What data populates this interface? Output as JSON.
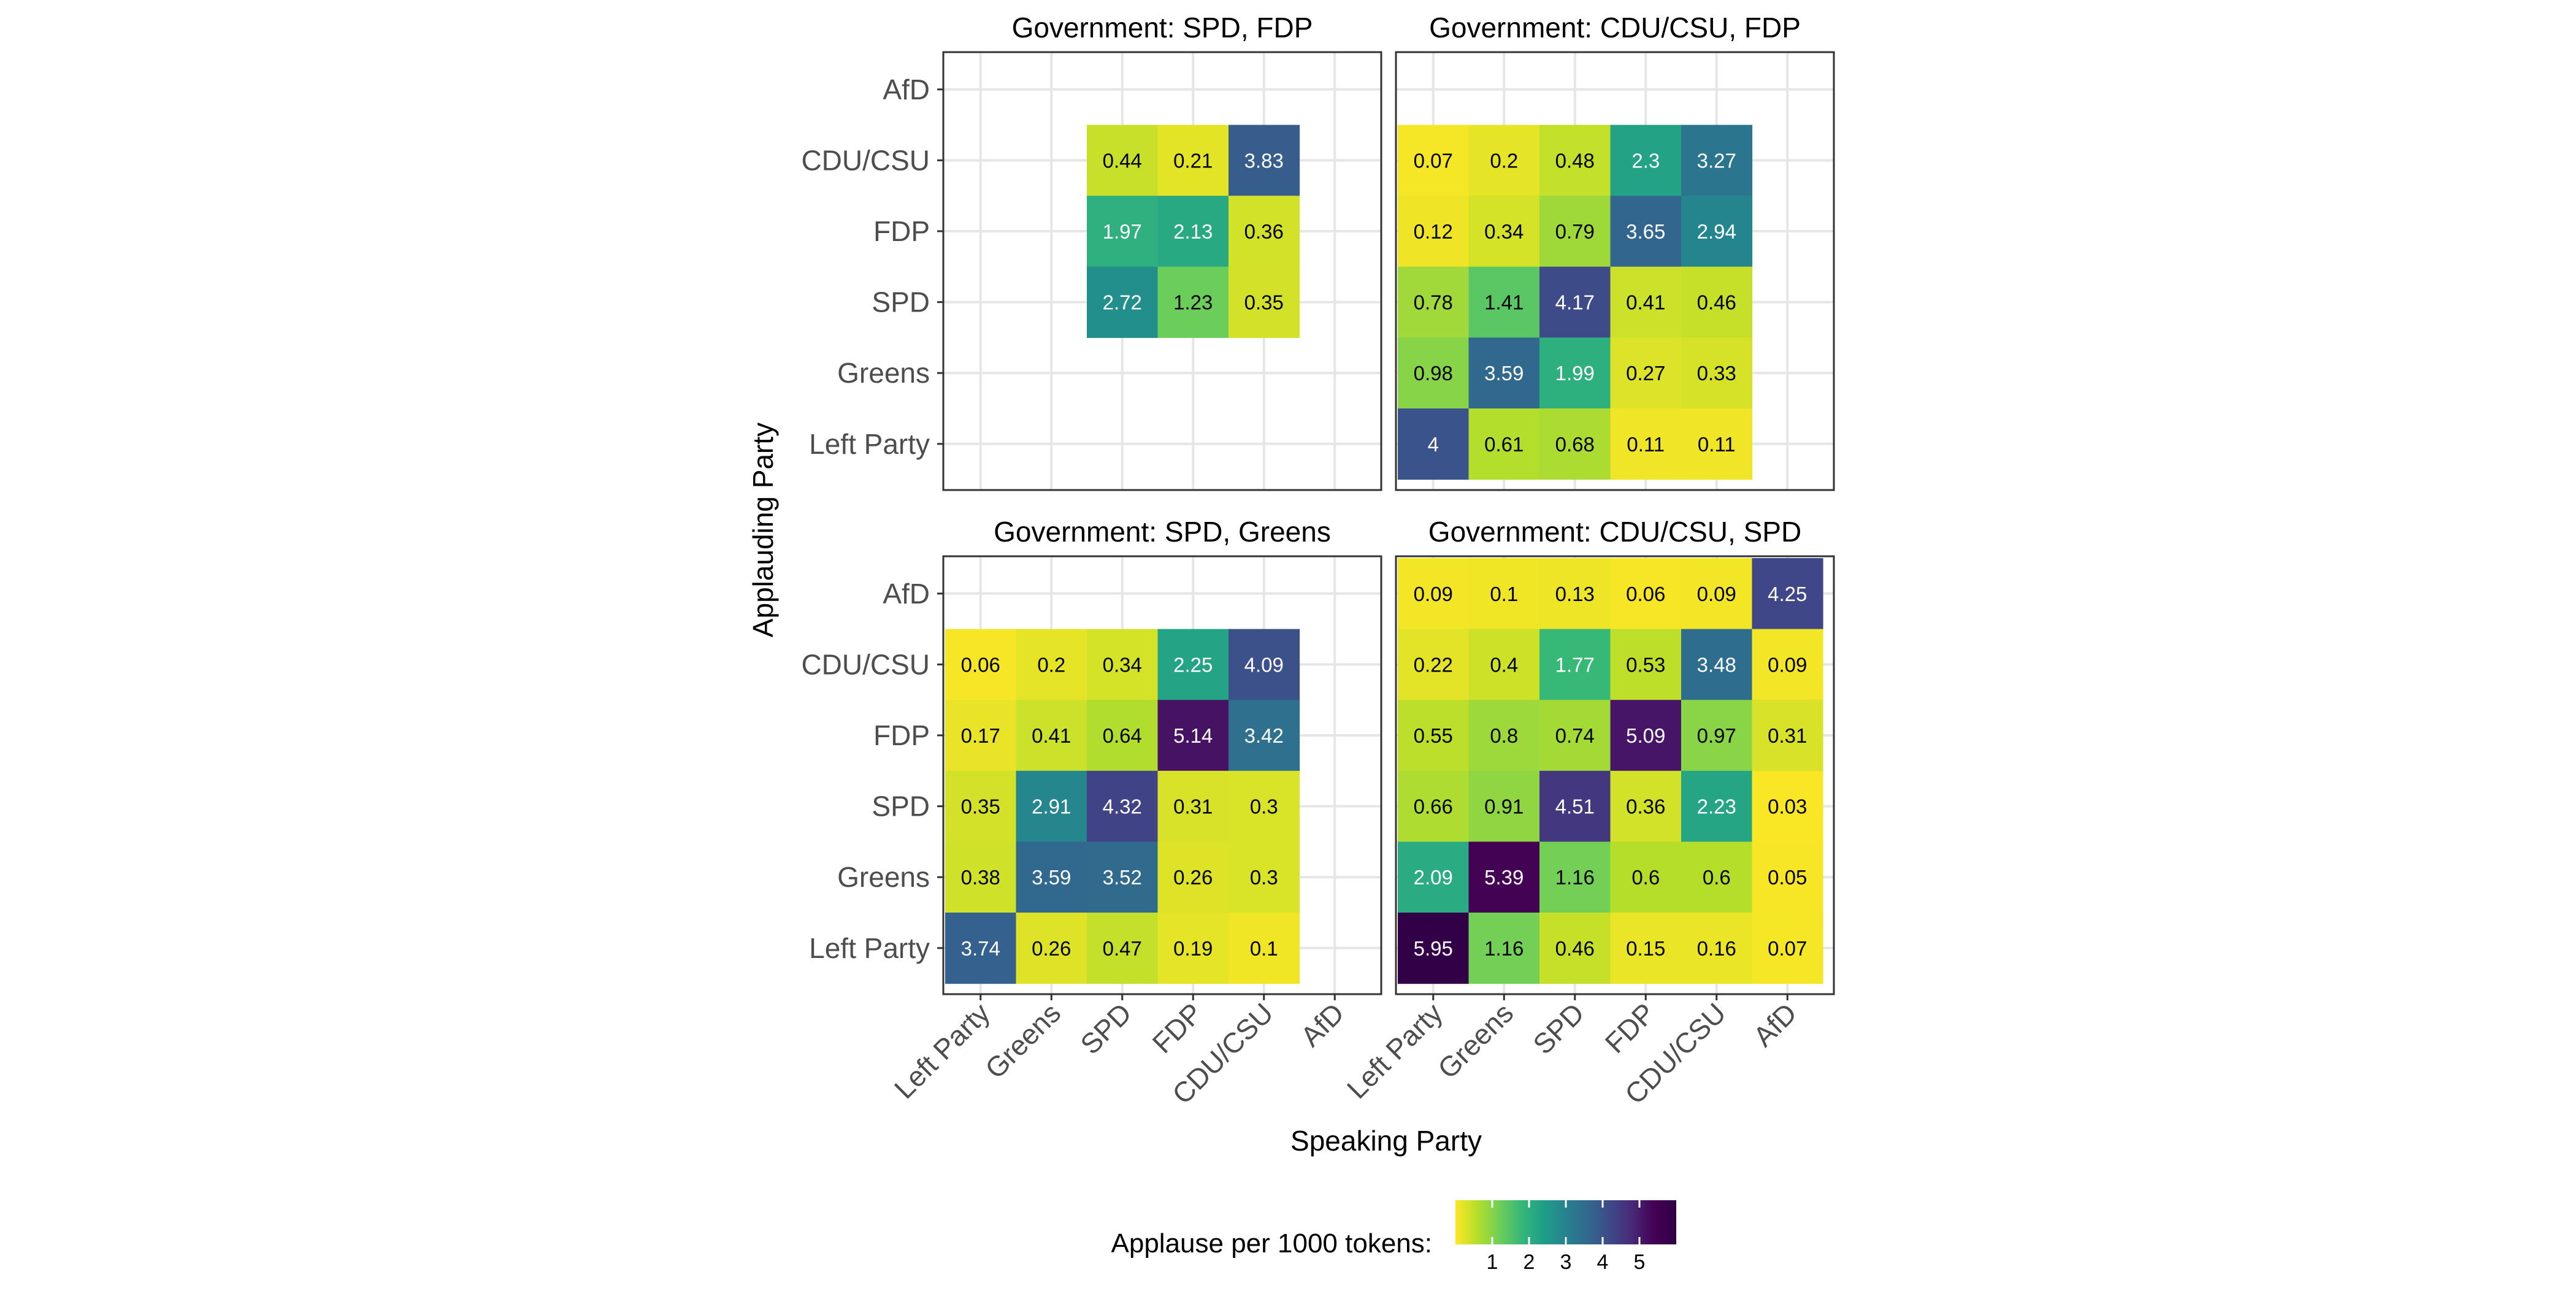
{
  "chart_data": {
    "type": "heatmap",
    "xlabel": "Speaking Party",
    "ylabel": "Applauding Party",
    "x_categories": [
      "Left Party",
      "Greens",
      "SPD",
      "FDP",
      "CDU/CSU",
      "AfD"
    ],
    "y_categories": [
      "AfD",
      "CDU/CSU",
      "FDP",
      "SPD",
      "Greens",
      "Left Party"
    ],
    "legend": {
      "title": "Applause per 1000 tokens:",
      "ticks": [
        1,
        2,
        3,
        4,
        5
      ],
      "range": [
        0,
        6
      ],
      "colormap": "viridis (reversed)",
      "position": "bottom"
    },
    "grid": true,
    "panels": [
      {
        "title": "Government: SPD, FDP",
        "cells": [
          {
            "y": "CDU/CSU",
            "x": "SPD",
            "value": 0.44
          },
          {
            "y": "CDU/CSU",
            "x": "FDP",
            "value": 0.21
          },
          {
            "y": "CDU/CSU",
            "x": "CDU/CSU",
            "value": 3.83
          },
          {
            "y": "FDP",
            "x": "SPD",
            "value": 1.97
          },
          {
            "y": "FDP",
            "x": "FDP",
            "value": 2.13
          },
          {
            "y": "FDP",
            "x": "CDU/CSU",
            "value": 0.36
          },
          {
            "y": "SPD",
            "x": "SPD",
            "value": 2.72
          },
          {
            "y": "SPD",
            "x": "FDP",
            "value": 1.23
          },
          {
            "y": "SPD",
            "x": "CDU/CSU",
            "value": 0.35
          }
        ]
      },
      {
        "title": "Government: CDU/CSU, FDP",
        "cells": [
          {
            "y": "CDU/CSU",
            "x": "Left Party",
            "value": 0.07
          },
          {
            "y": "CDU/CSU",
            "x": "Greens",
            "value": 0.2
          },
          {
            "y": "CDU/CSU",
            "x": "SPD",
            "value": 0.48
          },
          {
            "y": "CDU/CSU",
            "x": "FDP",
            "value": 2.3
          },
          {
            "y": "CDU/CSU",
            "x": "CDU/CSU",
            "value": 3.27
          },
          {
            "y": "FDP",
            "x": "Left Party",
            "value": 0.12
          },
          {
            "y": "FDP",
            "x": "Greens",
            "value": 0.34
          },
          {
            "y": "FDP",
            "x": "SPD",
            "value": 0.79
          },
          {
            "y": "FDP",
            "x": "FDP",
            "value": 3.65
          },
          {
            "y": "FDP",
            "x": "CDU/CSU",
            "value": 2.94
          },
          {
            "y": "SPD",
            "x": "Left Party",
            "value": 0.78
          },
          {
            "y": "SPD",
            "x": "Greens",
            "value": 1.41
          },
          {
            "y": "SPD",
            "x": "SPD",
            "value": 4.17
          },
          {
            "y": "SPD",
            "x": "FDP",
            "value": 0.41
          },
          {
            "y": "SPD",
            "x": "CDU/CSU",
            "value": 0.46
          },
          {
            "y": "Greens",
            "x": "Left Party",
            "value": 0.98
          },
          {
            "y": "Greens",
            "x": "Greens",
            "value": 3.59
          },
          {
            "y": "Greens",
            "x": "SPD",
            "value": 1.99
          },
          {
            "y": "Greens",
            "x": "FDP",
            "value": 0.27
          },
          {
            "y": "Greens",
            "x": "CDU/CSU",
            "value": 0.33
          },
          {
            "y": "Left Party",
            "x": "Left Party",
            "value": 4
          },
          {
            "y": "Left Party",
            "x": "Greens",
            "value": 0.61
          },
          {
            "y": "Left Party",
            "x": "SPD",
            "value": 0.68
          },
          {
            "y": "Left Party",
            "x": "FDP",
            "value": 0.11
          },
          {
            "y": "Left Party",
            "x": "CDU/CSU",
            "value": 0.11
          }
        ]
      },
      {
        "title": "Government: SPD, Greens",
        "cells": [
          {
            "y": "CDU/CSU",
            "x": "Left Party",
            "value": 0.06
          },
          {
            "y": "CDU/CSU",
            "x": "Greens",
            "value": 0.2
          },
          {
            "y": "CDU/CSU",
            "x": "SPD",
            "value": 0.34
          },
          {
            "y": "CDU/CSU",
            "x": "FDP",
            "value": 2.25
          },
          {
            "y": "CDU/CSU",
            "x": "CDU/CSU",
            "value": 4.09
          },
          {
            "y": "FDP",
            "x": "Left Party",
            "value": 0.17
          },
          {
            "y": "FDP",
            "x": "Greens",
            "value": 0.41
          },
          {
            "y": "FDP",
            "x": "SPD",
            "value": 0.64
          },
          {
            "y": "FDP",
            "x": "FDP",
            "value": 5.14
          },
          {
            "y": "FDP",
            "x": "CDU/CSU",
            "value": 3.42
          },
          {
            "y": "SPD",
            "x": "Left Party",
            "value": 0.35
          },
          {
            "y": "SPD",
            "x": "Greens",
            "value": 2.91
          },
          {
            "y": "SPD",
            "x": "SPD",
            "value": 4.32
          },
          {
            "y": "SPD",
            "x": "FDP",
            "value": 0.31
          },
          {
            "y": "SPD",
            "x": "CDU/CSU",
            "value": 0.3
          },
          {
            "y": "Greens",
            "x": "Left Party",
            "value": 0.38
          },
          {
            "y": "Greens",
            "x": "Greens",
            "value": 3.59
          },
          {
            "y": "Greens",
            "x": "SPD",
            "value": 3.52
          },
          {
            "y": "Greens",
            "x": "FDP",
            "value": 0.26
          },
          {
            "y": "Greens",
            "x": "CDU/CSU",
            "value": 0.3
          },
          {
            "y": "Left Party",
            "x": "Left Party",
            "value": 3.74
          },
          {
            "y": "Left Party",
            "x": "Greens",
            "value": 0.26
          },
          {
            "y": "Left Party",
            "x": "SPD",
            "value": 0.47
          },
          {
            "y": "Left Party",
            "x": "FDP",
            "value": 0.19
          },
          {
            "y": "Left Party",
            "x": "CDU/CSU",
            "value": 0.1
          }
        ]
      },
      {
        "title": "Government: CDU/CSU, SPD",
        "cells": [
          {
            "y": "AfD",
            "x": "Left Party",
            "value": 0.09
          },
          {
            "y": "AfD",
            "x": "Greens",
            "value": 0.1
          },
          {
            "y": "AfD",
            "x": "SPD",
            "value": 0.13
          },
          {
            "y": "AfD",
            "x": "FDP",
            "value": 0.06
          },
          {
            "y": "AfD",
            "x": "CDU/CSU",
            "value": 0.09
          },
          {
            "y": "AfD",
            "x": "AfD",
            "value": 4.25
          },
          {
            "y": "CDU/CSU",
            "x": "Left Party",
            "value": 0.22
          },
          {
            "y": "CDU/CSU",
            "x": "Greens",
            "value": 0.4
          },
          {
            "y": "CDU/CSU",
            "x": "SPD",
            "value": 1.77
          },
          {
            "y": "CDU/CSU",
            "x": "FDP",
            "value": 0.53
          },
          {
            "y": "CDU/CSU",
            "x": "CDU/CSU",
            "value": 3.48
          },
          {
            "y": "CDU/CSU",
            "x": "AfD",
            "value": 0.09
          },
          {
            "y": "FDP",
            "x": "Left Party",
            "value": 0.55
          },
          {
            "y": "FDP",
            "x": "Greens",
            "value": 0.8
          },
          {
            "y": "FDP",
            "x": "SPD",
            "value": 0.74
          },
          {
            "y": "FDP",
            "x": "FDP",
            "value": 5.09
          },
          {
            "y": "FDP",
            "x": "CDU/CSU",
            "value": 0.97
          },
          {
            "y": "FDP",
            "x": "AfD",
            "value": 0.31
          },
          {
            "y": "SPD",
            "x": "Left Party",
            "value": 0.66
          },
          {
            "y": "SPD",
            "x": "Greens",
            "value": 0.91
          },
          {
            "y": "SPD",
            "x": "SPD",
            "value": 4.51
          },
          {
            "y": "SPD",
            "x": "FDP",
            "value": 0.36
          },
          {
            "y": "SPD",
            "x": "CDU/CSU",
            "value": 2.23
          },
          {
            "y": "SPD",
            "x": "AfD",
            "value": 0.03
          },
          {
            "y": "Greens",
            "x": "Left Party",
            "value": 2.09
          },
          {
            "y": "Greens",
            "x": "Greens",
            "value": 5.39
          },
          {
            "y": "Greens",
            "x": "SPD",
            "value": 1.16
          },
          {
            "y": "Greens",
            "x": "FDP",
            "value": 0.6
          },
          {
            "y": "Greens",
            "x": "CDU/CSU",
            "value": 0.6
          },
          {
            "y": "Greens",
            "x": "AfD",
            "value": 0.05
          },
          {
            "y": "Left Party",
            "x": "Left Party",
            "value": 5.95
          },
          {
            "y": "Left Party",
            "x": "Greens",
            "value": 1.16
          },
          {
            "y": "Left Party",
            "x": "SPD",
            "value": 0.46
          },
          {
            "y": "Left Party",
            "x": "FDP",
            "value": 0.15
          },
          {
            "y": "Left Party",
            "x": "CDU/CSU",
            "value": 0.16
          },
          {
            "y": "Left Party",
            "x": "AfD",
            "value": 0.07
          }
        ]
      }
    ]
  }
}
